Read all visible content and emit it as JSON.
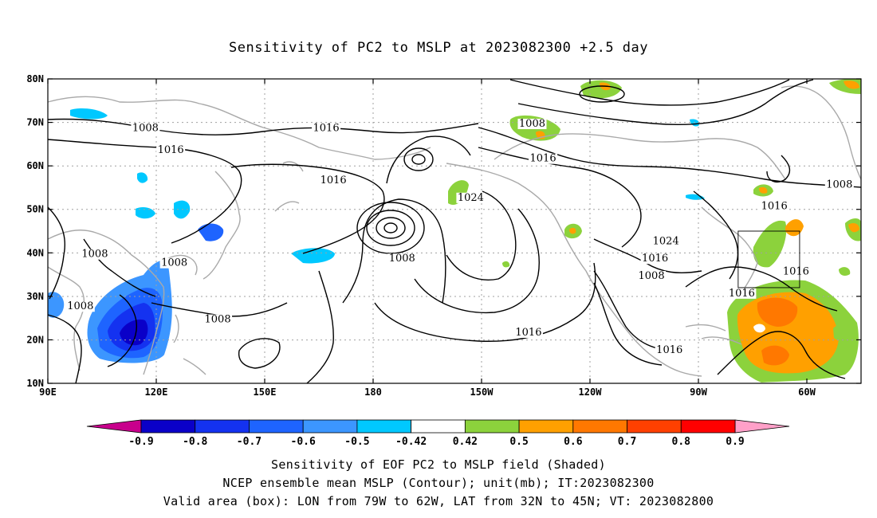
{
  "title": "Sensitivity of PC2 to MSLP at 2023082300 +2.5 day",
  "map": {
    "lat_labels": [
      "10N",
      "20N",
      "30N",
      "40N",
      "50N",
      "60N",
      "70N",
      "80N"
    ],
    "lat_values": [
      10,
      20,
      30,
      40,
      50,
      60,
      70,
      80
    ],
    "lon_labels": [
      "90E",
      "120E",
      "150E",
      "180",
      "150W",
      "120W",
      "90W",
      "60W"
    ],
    "lon_values": [
      90,
      120,
      150,
      180,
      210,
      240,
      270,
      300
    ],
    "lon_range": [
      90,
      315
    ],
    "lat_range": [
      10,
      80
    ],
    "contour_color": "#000000",
    "coast_color": "#a9a9a9",
    "contour_labels": [
      {
        "text": "1008",
        "lon": 117,
        "lat": 68
      },
      {
        "text": "1016",
        "lon": 167,
        "lat": 68
      },
      {
        "text": "1008",
        "lon": 224,
        "lat": 69
      },
      {
        "text": "1016",
        "lon": 124,
        "lat": 63
      },
      {
        "text": "1016",
        "lon": 169,
        "lat": 56
      },
      {
        "text": "1016",
        "lon": 227,
        "lat": 61
      },
      {
        "text": "1024",
        "lon": 207,
        "lat": 52
      },
      {
        "text": "1024",
        "lon": 261,
        "lat": 42
      },
      {
        "text": "1016",
        "lon": 291,
        "lat": 50
      },
      {
        "text": "1008",
        "lon": 309,
        "lat": 55
      },
      {
        "text": "1008",
        "lon": 103,
        "lat": 39
      },
      {
        "text": "1008",
        "lon": 125,
        "lat": 37
      },
      {
        "text": "1008",
        "lon": 188,
        "lat": 38
      },
      {
        "text": "1016",
        "lon": 258,
        "lat": 38
      },
      {
        "text": "1008",
        "lon": 257,
        "lat": 34
      },
      {
        "text": "1016",
        "lon": 297,
        "lat": 35
      },
      {
        "text": "1016",
        "lon": 282,
        "lat": 30
      },
      {
        "text": "1008",
        "lon": 99,
        "lat": 27
      },
      {
        "text": "1008",
        "lon": 137,
        "lat": 24
      },
      {
        "text": "1016",
        "lon": 223,
        "lat": 21
      },
      {
        "text": "1016",
        "lon": 262,
        "lat": 17
      }
    ],
    "valid_box": {
      "lon_min": 281,
      "lon_max": 298,
      "lat_min": 32,
      "lat_max": 45
    }
  },
  "colorbar": {
    "labels": [
      "-0.9",
      "-0.8",
      "-0.7",
      "-0.6",
      "-0.5",
      "-0.42",
      "0.42",
      "0.5",
      "0.6",
      "0.7",
      "0.8",
      "0.9"
    ],
    "colors": [
      "#0a00c8",
      "#1432f0",
      "#1e64ff",
      "#3c96ff",
      "#00c8ff",
      "#ffffff",
      "#8cd23c",
      "#ffa000",
      "#ff7800",
      "#ff4000",
      "#ff0000"
    ],
    "low_end_color": "#c8008c",
    "high_end_color": "#ffa0c8"
  },
  "captions": {
    "line1": "Sensitivity of EOF PC2 to MSLP field (Shaded)",
    "line2": "NCEP ensemble mean MSLP (Contour); unit(mb); IT:2023082300",
    "line3": "Valid area (box): LON from 79W to 62W, LAT from 32N to 45N; VT: 2023082800"
  }
}
